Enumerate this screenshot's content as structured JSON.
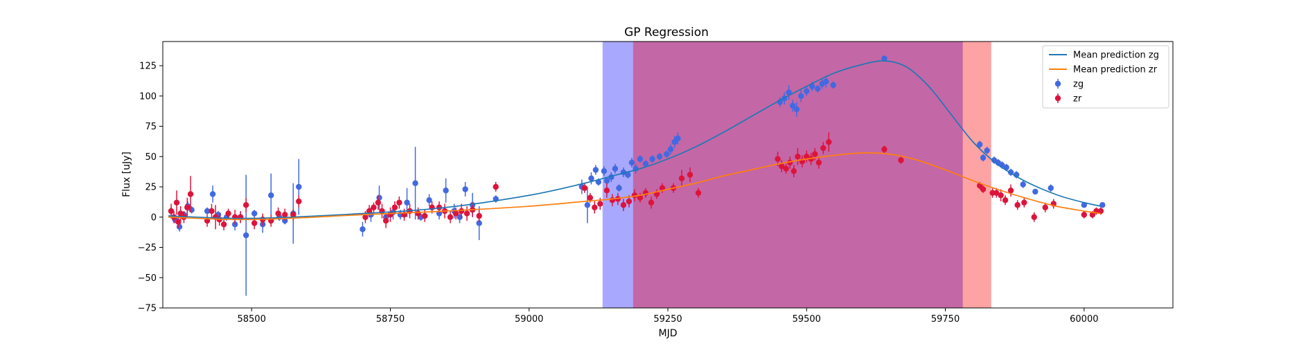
{
  "chart_data": {
    "type": "scatter",
    "title": "GP Regression",
    "xlabel": "MJD",
    "ylabel": "Flux [uJy]",
    "xlim": [
      58340,
      60160
    ],
    "ylim": [
      -75,
      145
    ],
    "xticks": [
      58500,
      58750,
      59000,
      59250,
      59500,
      59750,
      60000
    ],
    "yticks": [
      -75,
      -50,
      -25,
      0,
      25,
      50,
      75,
      100,
      125
    ],
    "grid": false,
    "legend_position": "top-right",
    "colors": {
      "zg_line": "#1f77b4",
      "zr_line": "#ff7f0e",
      "zg_points": "#4169e1",
      "zr_points": "#dc143c",
      "band_blue": "#a8a8fe",
      "band_purple": "#c467a6",
      "band_red": "#fea3a3"
    },
    "shaded_regions": [
      {
        "x_start": 59133,
        "x_end": 59188,
        "color": "band_blue"
      },
      {
        "x_start": 59188,
        "x_end": 59782,
        "color": "band_purple"
      },
      {
        "x_start": 59782,
        "x_end": 59832,
        "color": "band_red"
      }
    ],
    "series": [
      {
        "name": "Mean prediction zg",
        "kind": "line",
        "color": "zg_line",
        "x": [
          58350,
          58500,
          58700,
          58850,
          59000,
          59100,
          59150,
          59200,
          59250,
          59300,
          59350,
          59400,
          59450,
          59500,
          59550,
          59600,
          59640,
          59680,
          59720,
          59760,
          59800,
          59840,
          59880,
          59920,
          59960,
          60000,
          60030
        ],
        "y": [
          1,
          -1,
          3,
          8,
          18,
          28,
          34,
          40,
          48,
          58,
          70,
          83,
          96,
          108,
          119,
          126,
          129,
          124,
          108,
          85,
          62,
          45,
          33,
          24,
          17,
          12,
          9
        ]
      },
      {
        "name": "Mean prediction zr",
        "kind": "line",
        "color": "zr_line",
        "x": [
          58350,
          58500,
          58700,
          58850,
          59000,
          59100,
          59150,
          59200,
          59250,
          59300,
          59350,
          59400,
          59450,
          59500,
          59550,
          59600,
          59650,
          59700,
          59750,
          59800,
          59850,
          59900,
          59950,
          60000,
          60030
        ],
        "y": [
          0,
          -2,
          2,
          5,
          9,
          13,
          15,
          18,
          23,
          28,
          34,
          39,
          44,
          48,
          51,
          53,
          52,
          47,
          39,
          30,
          22,
          15,
          9,
          5,
          3
        ]
      },
      {
        "name": "zg",
        "kind": "errorbar",
        "color": "zg_points",
        "x": [
          58355,
          58362,
          58370,
          58378,
          58385,
          58392,
          58420,
          58430,
          58440,
          58455,
          58470,
          58480,
          58490,
          58505,
          58520,
          58535,
          58550,
          58560,
          58575,
          58585,
          58700,
          58715,
          58730,
          58742,
          58755,
          58768,
          58780,
          58795,
          58805,
          58820,
          58838,
          58850,
          58865,
          58875,
          58885,
          58898,
          58910,
          58940,
          59095,
          59105,
          59112,
          59120,
          59125,
          59135,
          59140,
          59148,
          59155,
          59162,
          59170,
          59178,
          59185,
          59192,
          59200,
          59210,
          59222,
          59235,
          59248,
          59255,
          59262,
          59268,
          59452,
          59460,
          59468,
          59475,
          59482,
          59490,
          59500,
          59510,
          59520,
          59528,
          59535,
          59548,
          59640,
          59812,
          59818,
          59825,
          59838,
          59845,
          59852,
          59860,
          59868,
          59878,
          59890,
          59912,
          59940,
          60000,
          60033
        ],
        "y": [
          5,
          -2,
          -8,
          2,
          9,
          6,
          5,
          19,
          2,
          0,
          -6,
          0,
          -15,
          3,
          -6,
          18,
          0,
          -3,
          3,
          25,
          -10,
          2,
          16,
          0,
          4,
          2,
          12,
          28,
          0,
          14,
          3,
          22,
          5,
          0,
          23,
          10,
          -5,
          15,
          25,
          10,
          32,
          39,
          29,
          38,
          30,
          33,
          40,
          24,
          37,
          35,
          45,
          40,
          48,
          44,
          48,
          50,
          52,
          56,
          62,
          65,
          95,
          98,
          103,
          92,
          89,
          100,
          104,
          108,
          106,
          110,
          112,
          109,
          131,
          60,
          49,
          55,
          47,
          45,
          43,
          41,
          37,
          35,
          27,
          21,
          24,
          10,
          10
        ],
        "err": [
          3,
          3,
          4,
          3,
          4,
          3,
          3,
          7,
          3,
          3,
          5,
          4,
          50,
          3,
          7,
          18,
          3,
          3,
          25,
          23,
          6,
          6,
          10,
          3,
          6,
          4,
          12,
          30,
          3,
          5,
          5,
          10,
          6,
          5,
          6,
          10,
          14,
          3,
          6,
          15,
          5,
          4,
          3,
          4,
          3,
          4,
          4,
          3,
          4,
          3,
          4,
          4,
          3,
          3,
          3,
          3,
          3,
          4,
          5,
          5,
          4,
          5,
          6,
          5,
          6,
          5,
          4,
          4,
          3,
          4,
          5,
          3,
          2,
          3,
          3,
          3,
          3,
          3,
          3,
          3,
          3,
          3,
          3,
          2,
          3,
          2,
          2
        ]
      },
      {
        "name": "zr",
        "kind": "errorbar",
        "color": "zr_points",
        "x": [
          58355,
          58360,
          58365,
          58368,
          58372,
          58378,
          58384,
          58390,
          58420,
          58428,
          58435,
          58442,
          58450,
          58458,
          58470,
          58480,
          58490,
          58505,
          58520,
          58535,
          58548,
          58560,
          58575,
          58585,
          58705,
          58712,
          58720,
          58728,
          58735,
          58742,
          58750,
          58758,
          58766,
          58775,
          58785,
          58800,
          58812,
          58825,
          58838,
          58848,
          58858,
          58868,
          58878,
          58888,
          58898,
          58910,
          58940,
          59100,
          59110,
          59118,
          59128,
          59140,
          59150,
          59160,
          59170,
          59180,
          59190,
          59200,
          59210,
          59220,
          59230,
          59240,
          59260,
          59275,
          59290,
          59305,
          59448,
          59455,
          59463,
          59470,
          59477,
          59484,
          59492,
          59500,
          59508,
          59515,
          59522,
          59530,
          59540,
          59640,
          59670,
          59812,
          59818,
          59835,
          59842,
          59850,
          59858,
          59868,
          59880,
          59892,
          59910,
          59930,
          59945,
          60000,
          60015,
          60022,
          60030
        ],
        "y": [
          5,
          0,
          12,
          -4,
          3,
          0,
          8,
          19,
          -3,
          5,
          0,
          -2,
          -6,
          3,
          0,
          0,
          10,
          -5,
          -2,
          -3,
          3,
          2,
          2,
          13,
          0,
          5,
          8,
          12,
          5,
          -3,
          2,
          8,
          12,
          2,
          5,
          3,
          1,
          8,
          8,
          5,
          0,
          3,
          5,
          3,
          6,
          1,
          25,
          24,
          16,
          8,
          11,
          22,
          14,
          15,
          10,
          13,
          18,
          16,
          20,
          12,
          19,
          24,
          24,
          32,
          35,
          20,
          48,
          42,
          40,
          45,
          38,
          50,
          46,
          50,
          48,
          52,
          45,
          57,
          62,
          56,
          47,
          26,
          23,
          20,
          20,
          18,
          14,
          22,
          10,
          12,
          0,
          8,
          11,
          2,
          2,
          5,
          5
        ],
        "err": [
          6,
          5,
          10,
          5,
          6,
          5,
          8,
          15,
          5,
          6,
          10,
          5,
          5,
          4,
          6,
          5,
          6,
          5,
          5,
          5,
          5,
          5,
          5,
          5,
          5,
          5,
          4,
          6,
          6,
          6,
          6,
          5,
          5,
          5,
          6,
          5,
          5,
          5,
          5,
          6,
          5,
          5,
          6,
          6,
          6,
          5,
          4,
          4,
          4,
          5,
          5,
          6,
          5,
          5,
          5,
          5,
          5,
          4,
          4,
          5,
          4,
          4,
          4,
          7,
          6,
          4,
          6,
          5,
          4,
          5,
          5,
          7,
          5,
          5,
          5,
          5,
          5,
          5,
          8,
          3,
          3,
          3,
          3,
          4,
          4,
          5,
          4,
          5,
          4,
          4,
          4,
          4,
          4,
          3,
          3,
          3,
          3
        ]
      }
    ],
    "legend": [
      {
        "label": "Mean prediction zg",
        "kind": "line",
        "color": "zg_line"
      },
      {
        "label": "Mean prediction zr",
        "kind": "line",
        "color": "zr_line"
      },
      {
        "label": "zg",
        "kind": "errorbar",
        "color": "zg_points"
      },
      {
        "label": "zr",
        "kind": "errorbar",
        "color": "zr_points"
      }
    ]
  }
}
